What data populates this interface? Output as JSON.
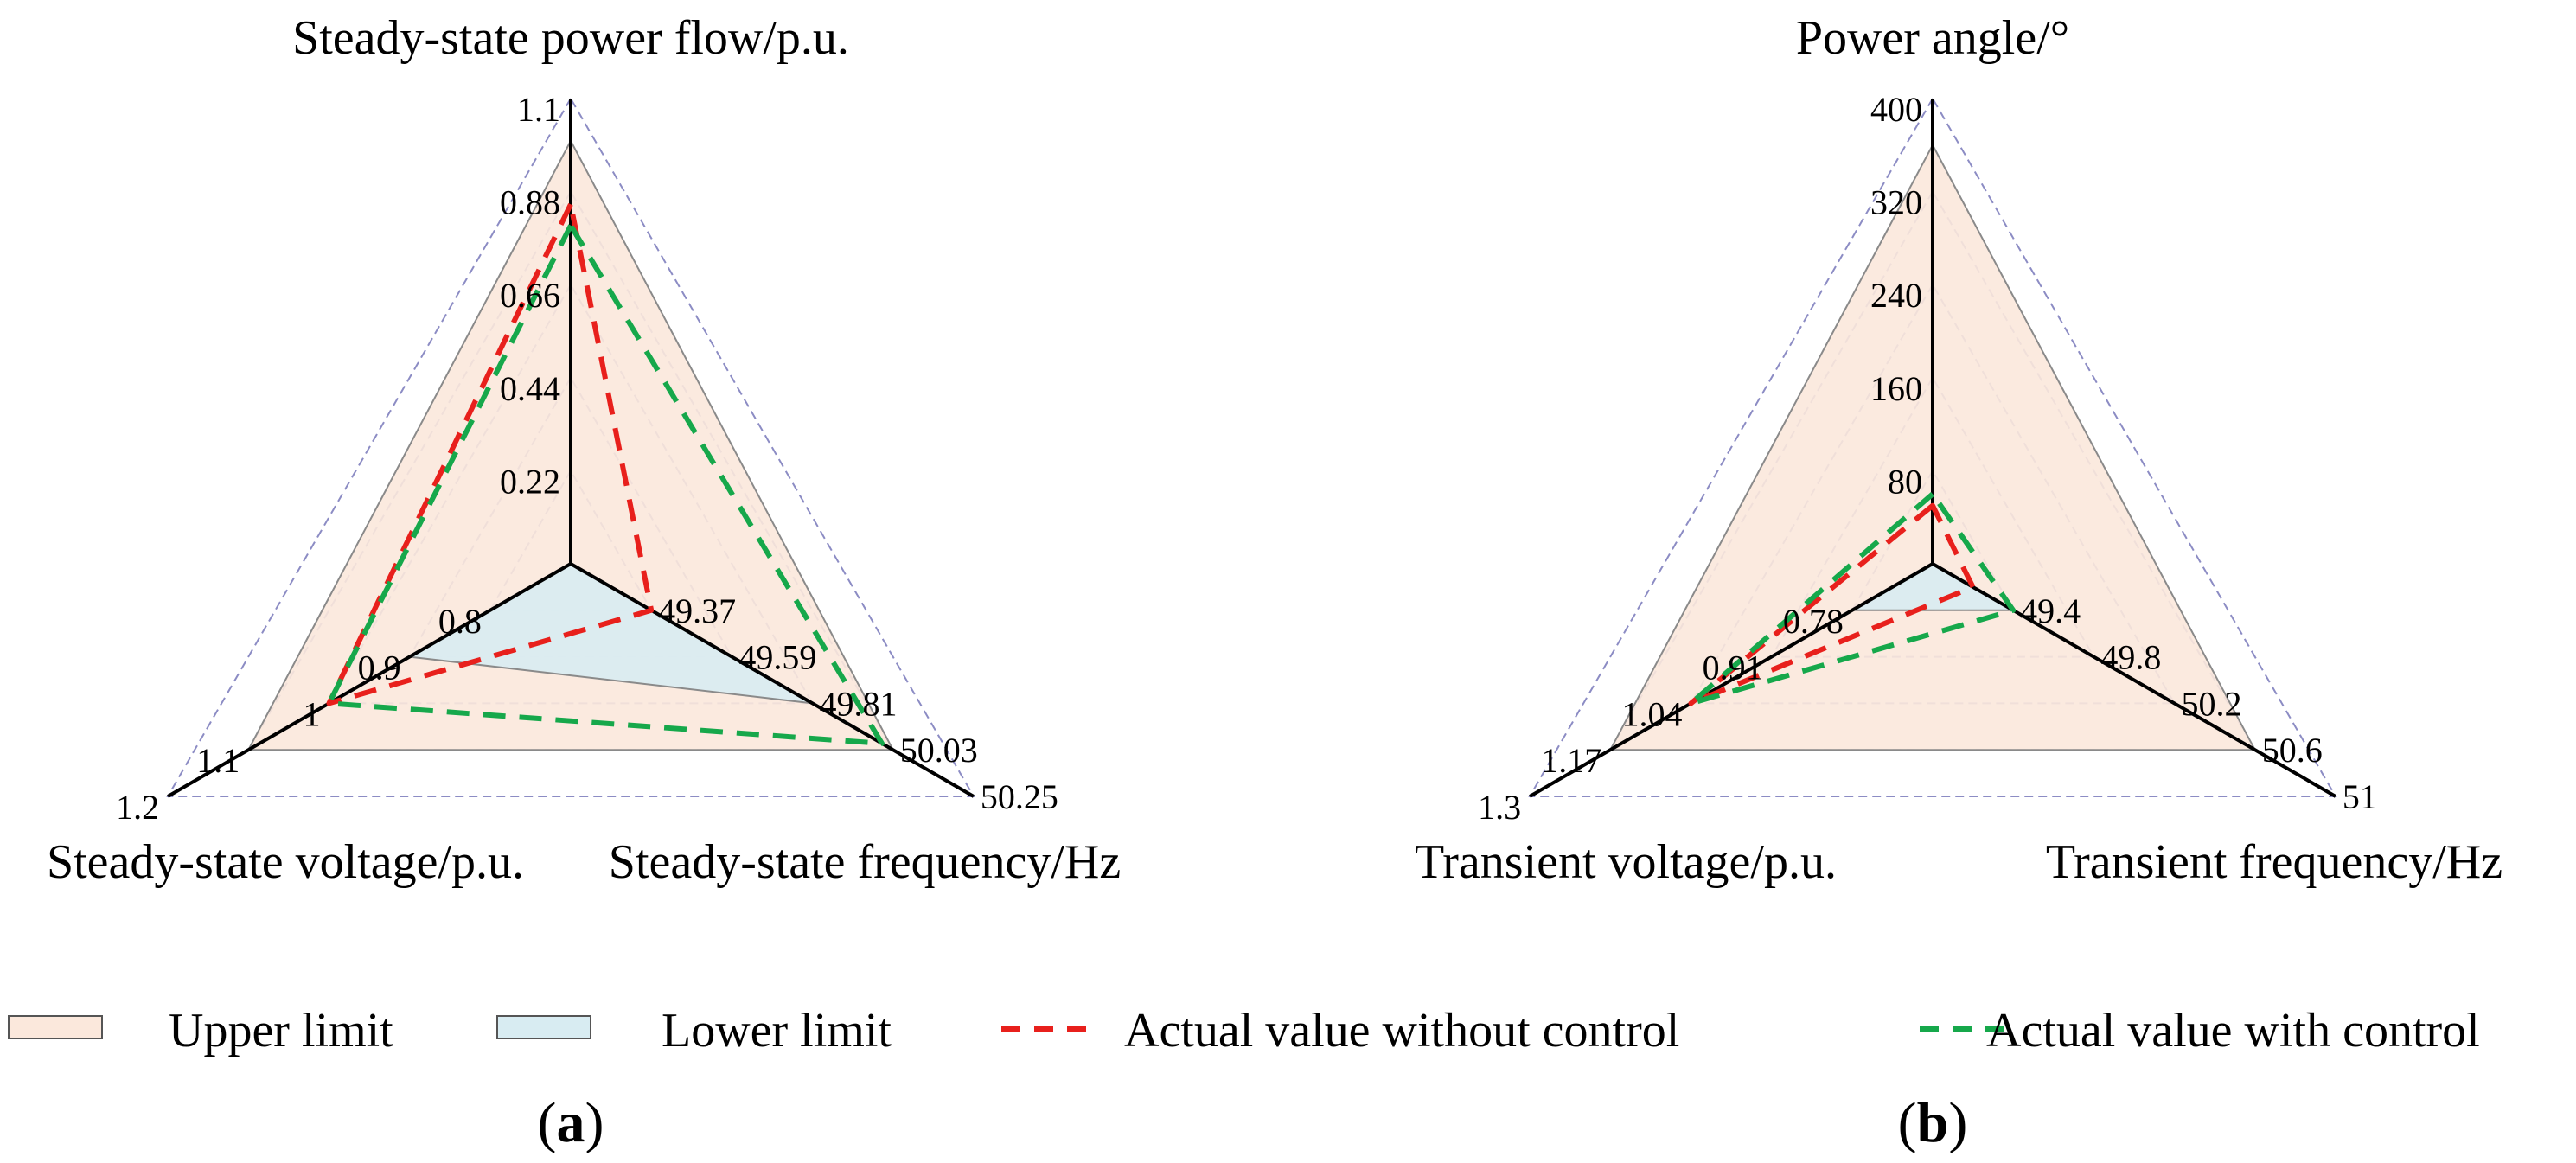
{
  "chart_data": [
    {
      "type": "radar",
      "panel_label": "a",
      "axes": [
        {
          "label": "Steady-state power flow/p.u.",
          "ticks": [
            "0.22",
            "0.44",
            "0.66",
            "0.88",
            "1.1"
          ],
          "range": [
            0,
            1.1
          ]
        },
        {
          "label": "Steady-state voltage/p.u.",
          "ticks": [
            "0.8",
            "0.9",
            "1",
            "1.1",
            "1.2"
          ],
          "range": [
            0.7,
            1.2
          ]
        },
        {
          "label": "Steady-state frequency/Hz",
          "ticks": [
            "49.37",
            "49.59",
            "49.81",
            "50.03",
            "50.25"
          ],
          "range": [
            49.15,
            50.25
          ]
        }
      ],
      "series": [
        {
          "name": "Upper limit",
          "values": [
            1.0,
            1.1,
            50.03
          ],
          "style": "fill",
          "color": "#fbe8dc"
        },
        {
          "name": "Lower limit",
          "values": [
            0.0,
            0.9,
            49.81
          ],
          "style": "fill",
          "color": "#d8ecf2"
        },
        {
          "name": "Actual value without control",
          "values": [
            0.85,
            1.0,
            49.37
          ],
          "style": "dashed",
          "color": "#e8201c"
        },
        {
          "name": "Actual value with control",
          "values": [
            0.8,
            1.0,
            50.0
          ],
          "style": "dashed",
          "color": "#16a84b"
        }
      ],
      "grid": true,
      "legend": "bottom"
    },
    {
      "type": "radar",
      "panel_label": "b",
      "axes": [
        {
          "label": "Power angle/°",
          "ticks": [
            "80",
            "160",
            "240",
            "320",
            "400"
          ],
          "range": [
            0,
            400
          ]
        },
        {
          "label": "Transient voltage/p.u.",
          "ticks": [
            "0.78",
            "0.91",
            "1.04",
            "1.17",
            "1.3"
          ],
          "range": [
            0.65,
            1.3
          ]
        },
        {
          "label": "Transient frequency/Hz",
          "ticks": [
            "49.4",
            "49.8",
            "50.2",
            "50.6",
            "51"
          ],
          "range": [
            49.0,
            51.0
          ]
        }
      ],
      "series": [
        {
          "name": "Upper limit",
          "values": [
            360,
            1.17,
            50.6
          ],
          "style": "fill",
          "color": "#fbe8dc"
        },
        {
          "name": "Lower limit",
          "values": [
            0,
            0.78,
            49.4
          ],
          "style": "fill",
          "color": "#d8ecf2"
        },
        {
          "name": "Actual value without control",
          "values": [
            50,
            1.04,
            49.2
          ],
          "style": "dashed",
          "color": "#e8201c"
        },
        {
          "name": "Actual value with control",
          "values": [
            60,
            1.04,
            49.4
          ],
          "style": "dashed",
          "color": "#16a84b"
        }
      ],
      "grid": true,
      "legend": "bottom"
    }
  ],
  "legend": {
    "items": [
      {
        "label": "Upper limit",
        "kind": "swatch",
        "color": "#fbe8dc"
      },
      {
        "label": "Lower limit",
        "kind": "swatch",
        "color": "#d8ecf2"
      },
      {
        "label": "Actual value without control",
        "kind": "dash",
        "color": "#e8201c"
      },
      {
        "label": "Actual value with control",
        "kind": "dash",
        "color": "#16a84b"
      }
    ]
  }
}
